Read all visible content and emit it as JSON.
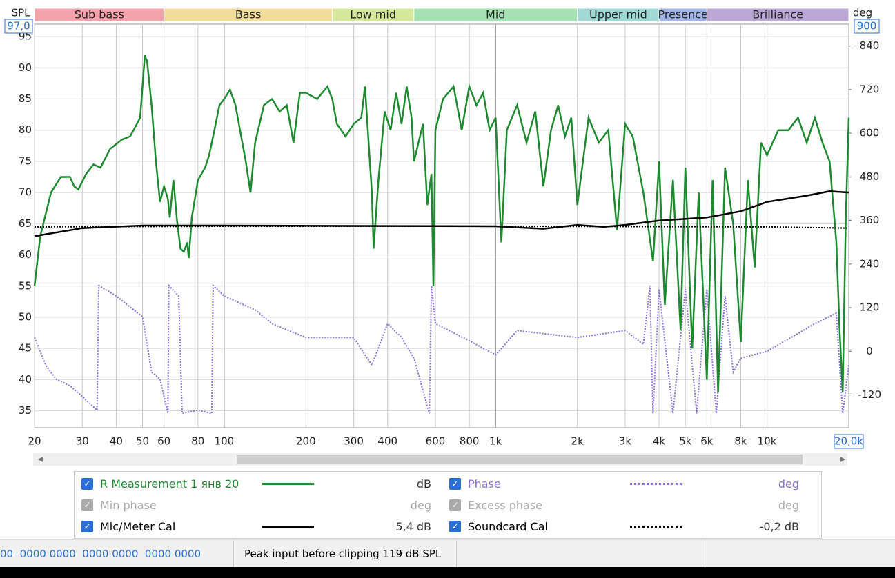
{
  "chart_data": {
    "type": "line",
    "ylabel": "SPL",
    "y2label": "deg",
    "xscale": "log",
    "xlim": [
      20,
      20000
    ],
    "ylim": [
      32.3,
      97
    ],
    "y2lim": [
      -210,
      900
    ],
    "xticks": [
      20,
      30,
      40,
      50,
      60,
      80,
      {
        "value": 100,
        "label": "100"
      },
      200,
      300,
      400,
      600,
      800,
      {
        "value": 1000,
        "label": "1k"
      },
      {
        "value": 2000,
        "label": "2k"
      },
      {
        "value": 3000,
        "label": "3k"
      },
      {
        "value": 4000,
        "label": "4k"
      },
      {
        "value": 5000,
        "label": "5k"
      },
      {
        "value": 6000,
        "label": "6k"
      },
      {
        "value": 8000,
        "label": "8k"
      },
      {
        "value": 10000,
        "label": "10k"
      },
      {
        "value": 20000,
        "label": "20,0k"
      }
    ],
    "yticks": [
      35,
      40,
      45,
      50,
      55,
      60,
      65,
      70,
      75,
      80,
      85,
      90,
      95,
      {
        "value": 97,
        "label": "97,0"
      }
    ],
    "y2ticks": [
      -120,
      0,
      120,
      240,
      360,
      480,
      600,
      720,
      840,
      900
    ],
    "grid": true,
    "bands": [
      {
        "name": "Sub bass",
        "color": "#f5a3aa",
        "from": 20,
        "to": 60
      },
      {
        "name": "Bass",
        "color": "#f2dc9c",
        "from": 60,
        "to": 250
      },
      {
        "name": "Low mid",
        "color": "#d5e79b",
        "from": 250,
        "to": 500
      },
      {
        "name": "Mid",
        "color": "#a4e3b1",
        "from": 500,
        "to": 2000
      },
      {
        "name": "Upper mid",
        "color": "#9fd8d5",
        "from": 2000,
        "to": 4000
      },
      {
        "name": "Presence",
        "color": "#a0b4e5",
        "from": 4000,
        "to": 6000
      },
      {
        "name": "Brilliance",
        "color": "#bba7d6",
        "from": 6000,
        "to": 20000
      }
    ],
    "series": [
      {
        "name": "R Measurement 1 янв 20",
        "legend_text": "dB",
        "color": "#1e8a30",
        "style": "solid",
        "x": [
          20,
          21,
          23,
          25,
          27,
          28,
          29,
          31,
          33,
          35,
          38,
          42,
          45,
          47,
          49,
          50,
          51,
          52,
          54,
          56,
          58,
          60,
          62,
          63,
          65,
          67,
          69,
          71,
          73,
          74,
          76,
          80,
          85,
          88,
          92,
          96,
          100,
          105,
          110,
          120,
          125,
          130,
          140,
          150,
          160,
          170,
          180,
          190,
          200,
          220,
          240,
          250,
          260,
          280,
          300,
          320,
          330,
          350,
          355,
          370,
          390,
          410,
          430,
          450,
          470,
          490,
          500,
          540,
          560,
          580,
          590,
          600,
          640,
          700,
          750,
          800,
          850,
          900,
          950,
          1000,
          1050,
          1100,
          1200,
          1300,
          1400,
          1500,
          1600,
          1700,
          1800,
          1900,
          2000,
          2200,
          2400,
          2600,
          2800,
          3000,
          3200,
          3500,
          3800,
          4000,
          4200,
          4500,
          4800,
          5000,
          5300,
          5600,
          6000,
          6300,
          6600,
          7000,
          7500,
          8000,
          8500,
          9000,
          9500,
          10000,
          11000,
          12000,
          13000,
          14000,
          15000,
          16000,
          17000,
          18000,
          18500,
          19000,
          19500,
          20000
        ],
        "values": [
          55,
          63,
          70,
          72.5,
          72.5,
          71,
          70.5,
          73,
          74.5,
          74,
          77,
          78.5,
          79,
          80.5,
          82,
          87,
          92,
          91,
          84,
          75,
          68.5,
          71,
          69,
          66,
          72,
          65.5,
          61,
          60.5,
          62,
          59.5,
          66,
          72,
          74,
          76,
          80,
          84,
          85,
          86.5,
          84,
          75,
          70,
          78,
          84,
          85,
          83,
          84,
          78,
          86,
          86,
          85,
          87,
          85,
          81,
          79,
          81,
          82,
          87,
          70,
          61,
          72,
          83,
          80,
          86,
          81,
          87,
          82,
          75,
          81,
          68,
          73,
          55,
          80,
          85,
          87,
          80,
          87,
          84,
          86,
          80,
          82,
          62,
          80,
          84,
          78,
          83,
          71,
          80,
          84,
          79,
          82,
          68,
          82,
          78,
          80,
          64,
          81,
          79,
          70,
          59,
          75,
          52,
          72,
          48,
          74,
          45,
          70,
          40,
          72,
          38,
          74,
          65,
          46,
          72,
          58,
          78,
          76,
          80,
          80,
          82,
          78,
          82,
          78,
          75,
          62,
          48,
          38,
          66,
          82
        ]
      },
      {
        "name": "Phase",
        "legend_text": "deg",
        "color": "#8a6fe0",
        "style": "dotted",
        "axis": "y2",
        "x": [
          20,
          22,
          24,
          27,
          30,
          34,
          34.5,
          40,
          50,
          54,
          58,
          62,
          62.5,
          68,
          70,
          80,
          90,
          91,
          100,
          130,
          150,
          200,
          300,
          350,
          400,
          450,
          500,
          570,
          580,
          600,
          800,
          1000,
          1200,
          2000,
          3000,
          3500,
          3700,
          3800,
          4000,
          4500,
          5000,
          5500,
          6000,
          6500,
          7000,
          7500,
          8000,
          10000,
          15000,
          18000,
          19000,
          20000
        ],
        "values": [
          38,
          -38,
          -76,
          -95,
          -124,
          -162,
          181,
          152,
          95,
          -57,
          -76,
          -171,
          181,
          152,
          -171,
          -162,
          -171,
          181,
          152,
          114,
          76,
          38,
          38,
          -38,
          76,
          38,
          -19,
          -171,
          181,
          76,
          29,
          -10,
          57,
          38,
          57,
          19,
          181,
          -171,
          171,
          -171,
          171,
          -171,
          171,
          -171,
          152,
          -57,
          -19,
          0,
          76,
          105,
          -171,
          -38
        ]
      },
      {
        "name": "Mic/Meter Cal",
        "legend_text": "5,4 dB",
        "color": "#000000",
        "style": "solid",
        "x": [
          20,
          30,
          50,
          100,
          1000,
          1500,
          2000,
          2500,
          3000,
          4000,
          6000,
          8000,
          10000,
          14000,
          17000,
          20000
        ],
        "values": [
          63,
          64.3,
          64.7,
          64.7,
          64.6,
          64.2,
          64.8,
          64.5,
          64.8,
          65.5,
          66,
          67,
          68.5,
          69.5,
          70.2,
          70
        ]
      },
      {
        "name": "Soundcard Cal",
        "legend_text": "-0,2 dB",
        "color": "#000000",
        "style": "dotted",
        "x": [
          20,
          100,
          1000,
          10000,
          20000
        ],
        "values": [
          64.5,
          64.6,
          64.6,
          64.5,
          64.3
        ]
      }
    ],
    "inactive_series": [
      {
        "name": "Min phase",
        "legend_text": "deg"
      },
      {
        "name": "Excess phase",
        "legend_text": "deg"
      }
    ]
  },
  "status_bar": {
    "digits": "00  0000 0000  0000 0000  0000 0000",
    "message": "Peak input before clipping 119 dB SPL"
  }
}
